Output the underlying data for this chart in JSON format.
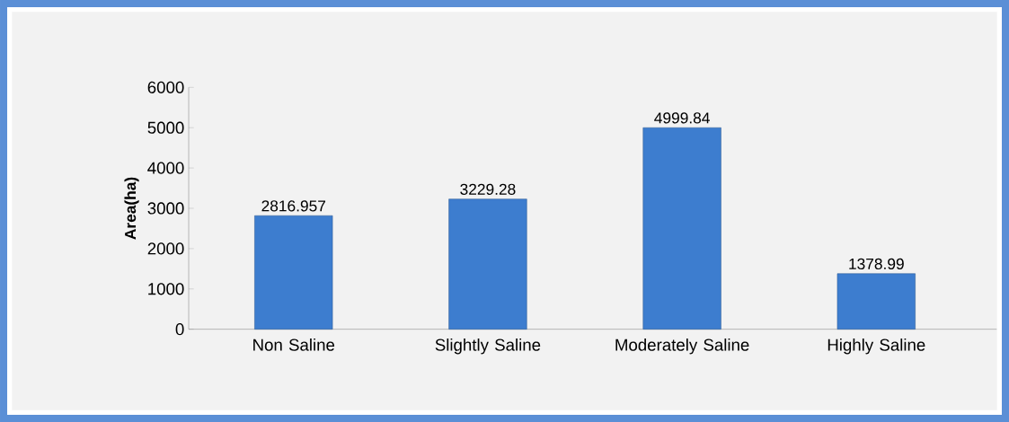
{
  "chart_data": {
    "type": "bar",
    "ylabel": "Area(ha)",
    "categories": [
      "Non Saline",
      "Slightly Saline",
      "Moderately Saline",
      "Highly Saline"
    ],
    "values": [
      2816.957,
      3229.28,
      4999.84,
      1378.99
    ],
    "value_labels": [
      "2816.957",
      "3229.28",
      "4999.84",
      "1378.99"
    ],
    "color": "#3d7dcf",
    "ylim": [
      0,
      6000
    ],
    "yticks": [
      0,
      1000,
      2000,
      3000,
      4000,
      5000,
      6000
    ]
  }
}
